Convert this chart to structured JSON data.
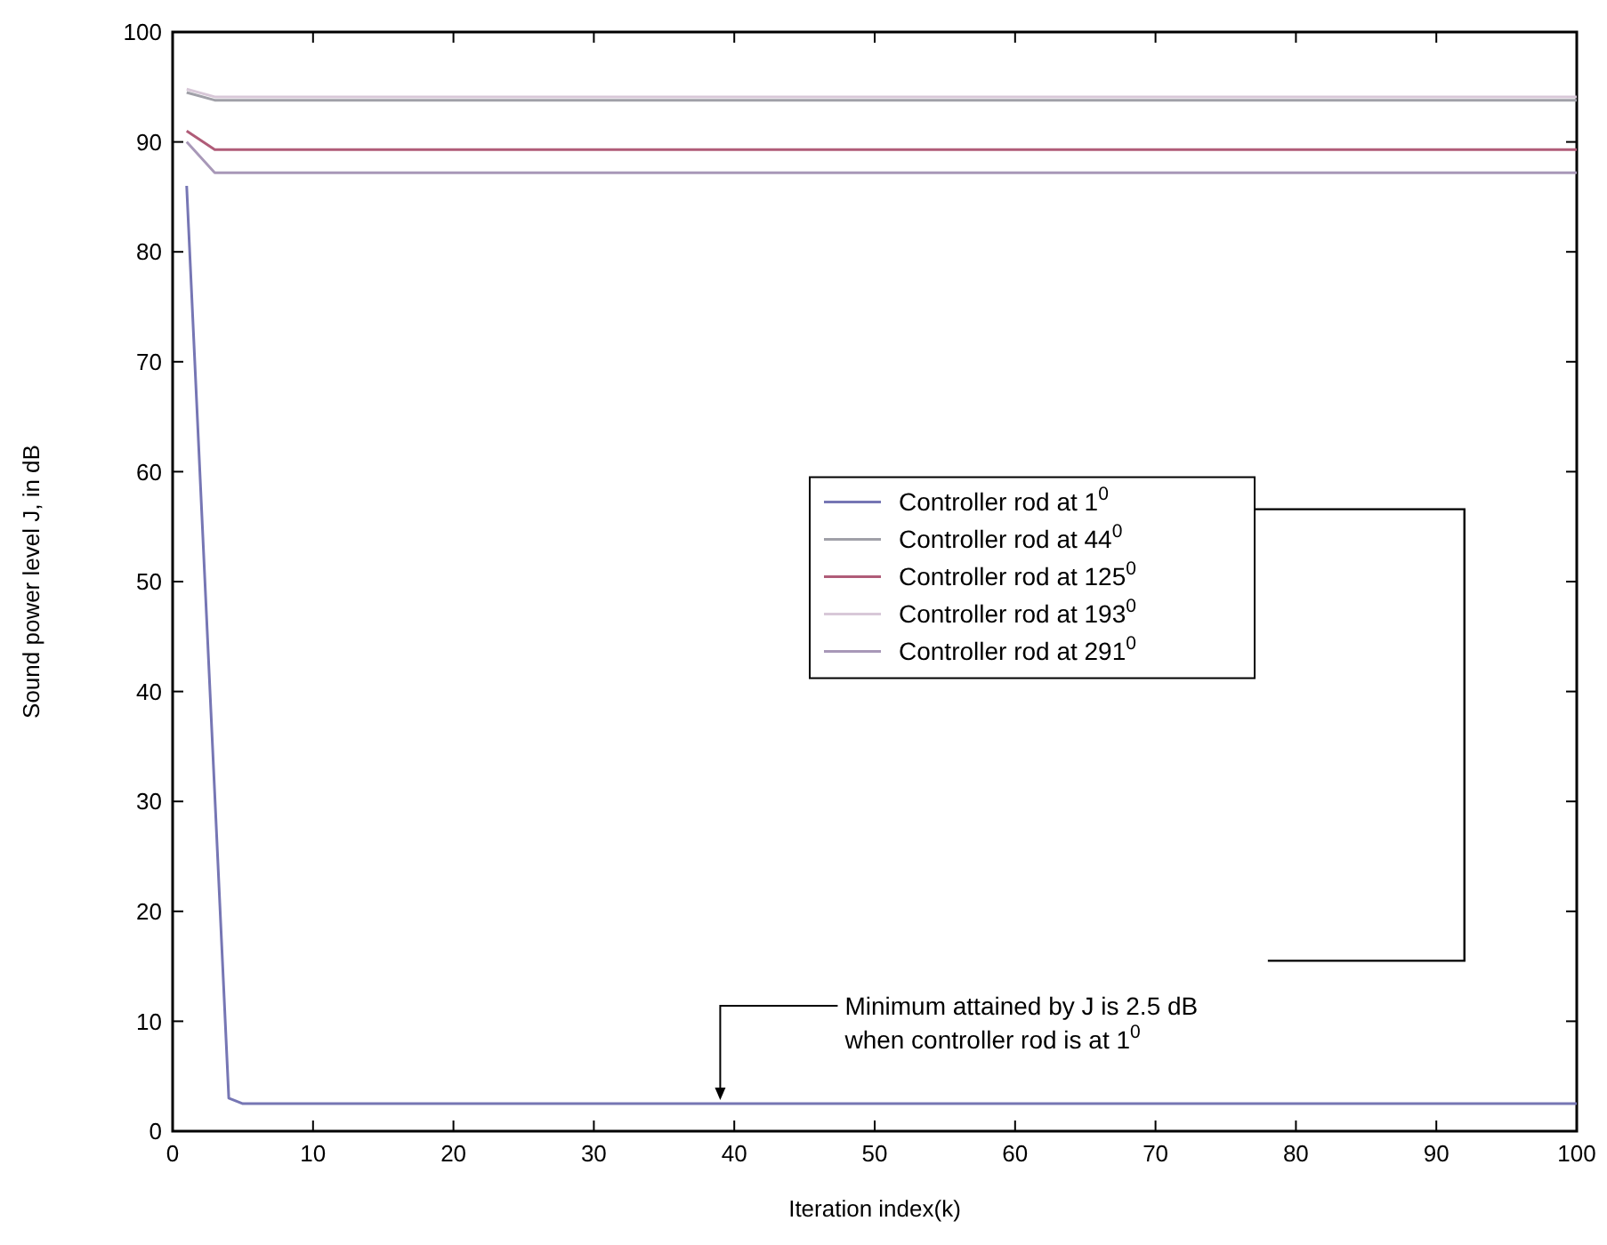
{
  "chart_data": {
    "type": "line",
    "xlabel": "Iteration index(k)",
    "ylabel": "Sound power level J, in dB",
    "xlim": [
      0,
      100
    ],
    "ylim": [
      0,
      100
    ],
    "xticks": [
      0,
      10,
      20,
      30,
      40,
      50,
      60,
      70,
      80,
      90,
      100
    ],
    "yticks": [
      0,
      10,
      20,
      30,
      40,
      50,
      60,
      70,
      80,
      90,
      100
    ],
    "grid": false,
    "legend": "right",
    "line_style": "solid",
    "marker": "none",
    "series": [
      {
        "name": "Controller rod at 1$^{0}$",
        "color": "#7676b4",
        "x": [
          1,
          4,
          5,
          100
        ],
        "values": [
          86,
          3,
          2.5,
          2.5
        ]
      },
      {
        "name": "Controller rod at 44$^{0}$",
        "color": "#a0a0a8",
        "x": [
          1,
          3,
          100
        ],
        "values": [
          94.5,
          93.8,
          93.8
        ]
      },
      {
        "name": "Controller rod at 125$^{0}$",
        "color": "#b05c78",
        "x": [
          1,
          3,
          100
        ],
        "values": [
          91,
          89.3,
          89.3
        ]
      },
      {
        "name": "Controller rod at 193$^{0}$",
        "color": "#d8c8d8",
        "x": [
          1,
          3,
          100
        ],
        "values": [
          94.8,
          94.1,
          94.1
        ]
      },
      {
        "name": "Controller rod at 291$^{0}$",
        "color": "#a898b8",
        "x": [
          1,
          3,
          100
        ],
        "values": [
          90,
          87.2,
          87.2
        ]
      }
    ],
    "annotations": [
      {
        "text": "Minimum attained by  J is 2.5 dB\nwhen controller rod is at 1$^{0}$",
        "x": 39,
        "y": 2.5
      }
    ]
  }
}
